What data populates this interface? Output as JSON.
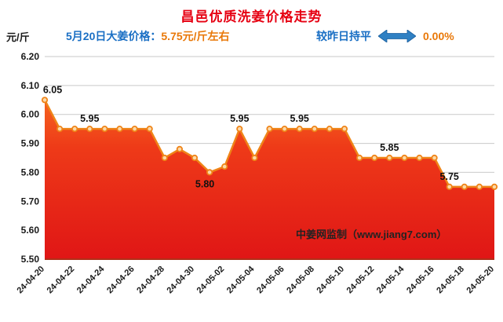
{
  "header": {
    "title": "昌邑优质洗姜价格走势",
    "subtitle_label": "5月20日大姜价格：",
    "subtitle_value": "5.75元/斤左右",
    "trend_label": "较昨日持平",
    "trend_value": "0.00%"
  },
  "y_axis_unit": "元/斤",
  "watermark": "中姜网监制（www.jiang7.com）",
  "colors": {
    "title_red": "#e60012",
    "label_blue": "#1a6fc4",
    "value_orange": "#e97808",
    "arrow_blue": "#2f80c3",
    "line_orange": "#ef8418",
    "marker_fill": "#fcd9a8",
    "area_top": "#f5641f",
    "area_bottom": "#e01616",
    "baseline_red": "#b03018",
    "gridline_gray": "#c9c9c9"
  },
  "chart_data": {
    "type": "area",
    "title": "昌邑优质洗姜价格走势",
    "xlabel": "",
    "ylabel": "元/斤",
    "ylim": [
      5.5,
      6.2
    ],
    "y_ticks": [
      6.2,
      6.1,
      6.0,
      5.9,
      5.8,
      5.7,
      5.6,
      5.5
    ],
    "grid": "horizontal",
    "x": [
      "24-04-20",
      "24-04-21",
      "24-04-22",
      "24-04-23",
      "24-04-24",
      "24-04-25",
      "24-04-26",
      "24-04-27",
      "24-04-28",
      "24-04-29",
      "24-04-30",
      "24-05-01",
      "24-05-02",
      "24-05-03",
      "24-05-04",
      "24-05-05",
      "24-05-06",
      "24-05-07",
      "24-05-08",
      "24-05-09",
      "24-05-10",
      "24-05-11",
      "24-05-12",
      "24-05-13",
      "24-05-14",
      "24-05-15",
      "24-05-16",
      "24-05-17",
      "24-05-18",
      "24-05-19",
      "24-05-20"
    ],
    "x_tick_labels": [
      "24-04-20",
      "24-04-22",
      "24-04-24",
      "24-04-26",
      "24-04-28",
      "24-04-30",
      "24-05-02",
      "24-05-04",
      "24-05-06",
      "24-05-08",
      "24-05-10",
      "24-05-12",
      "24-05-14",
      "24-05-16",
      "24-05-18",
      "24-05-20"
    ],
    "values": [
      6.05,
      5.95,
      5.95,
      5.95,
      5.95,
      5.95,
      5.95,
      5.95,
      5.85,
      5.88,
      5.85,
      5.8,
      5.82,
      5.95,
      5.85,
      5.95,
      5.95,
      5.95,
      5.95,
      5.95,
      5.95,
      5.85,
      5.85,
      5.85,
      5.85,
      5.85,
      5.85,
      5.75,
      5.75,
      5.75,
      5.75
    ],
    "point_labels": [
      {
        "index": 0,
        "text": "6.05",
        "position": "above",
        "dx": 10
      },
      {
        "index": 3,
        "text": "5.95",
        "position": "above",
        "dx": 0
      },
      {
        "index": 11,
        "text": "5.80",
        "position": "below",
        "dx": -6
      },
      {
        "index": 13,
        "text": "5.95",
        "position": "above",
        "dx": 0
      },
      {
        "index": 17,
        "text": "5.95",
        "position": "above",
        "dx": 0
      },
      {
        "index": 23,
        "text": "5.85",
        "position": "above",
        "dx": 0
      },
      {
        "index": 27,
        "text": "5.75",
        "position": "above",
        "dx": 0
      }
    ]
  }
}
